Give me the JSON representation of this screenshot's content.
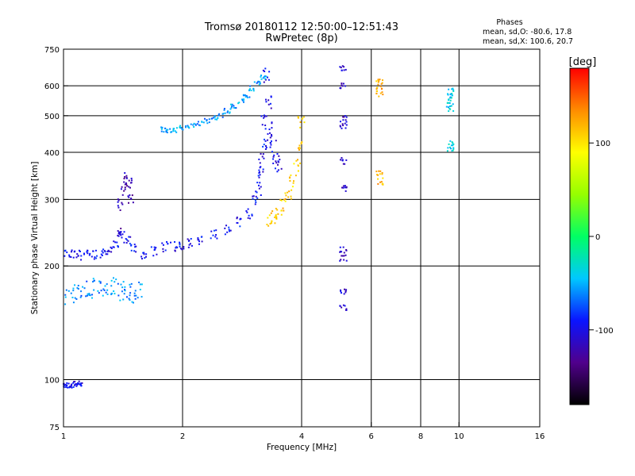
{
  "chart_data": {
    "type": "scatter",
    "title": "Tromsø 20180112 12:50:00–12:51:43",
    "subtitle": "RwPretec (8p)",
    "stats": {
      "title": "Phases",
      "line_o": "mean, sd,O: -80.6, 17.8",
      "line_x": "mean, sd,X: 100.6, 20.7"
    },
    "xlabel": "Frequency [MHz]",
    "ylabel": "Stationary phase Virtual Height [km]",
    "x_scale": "log",
    "y_scale": "log",
    "xlim": [
      1,
      16
    ],
    "ylim": [
      75,
      750
    ],
    "x_ticks": [
      {
        "value": 1,
        "label": "1"
      },
      {
        "value": 2,
        "label": "2"
      },
      {
        "value": 4,
        "label": "4"
      },
      {
        "value": 6,
        "label": "6"
      },
      {
        "value": 8,
        "label": "8"
      },
      {
        "value": 10,
        "label": "10"
      },
      {
        "value": 16,
        "label": "16"
      }
    ],
    "x_grid": [
      2,
      4,
      6,
      8,
      10
    ],
    "y_ticks": [
      {
        "value": 75,
        "label": "75"
      },
      {
        "value": 100,
        "label": "100"
      },
      {
        "value": 200,
        "label": "200"
      },
      {
        "value": 300,
        "label": "300"
      },
      {
        "value": 400,
        "label": "400"
      },
      {
        "value": 500,
        "label": "500"
      },
      {
        "value": 600,
        "label": "600"
      },
      {
        "value": 750,
        "label": "750"
      }
    ],
    "y_grid": [
      100,
      200,
      300,
      400,
      500,
      600
    ],
    "grid": true,
    "colorbar": {
      "label": "[deg]",
      "range": [
        -180,
        180
      ],
      "ticks": [
        {
          "value": 100,
          "label": "100"
        },
        {
          "value": 0,
          "label": "0"
        },
        {
          "value": -100,
          "label": "-100"
        }
      ],
      "colors": [
        "#000000",
        "#50008c",
        "#0a14ff",
        "#00c8ff",
        "#00ff64",
        "#96ff00",
        "#ffff00",
        "#ff8c00",
        "#ff0000"
      ]
    },
    "series": [
      {
        "phase": -95,
        "x": [
          1.0,
          1.05,
          1.1,
          1.15,
          1.2,
          1.25,
          1.3,
          1.35,
          1.4,
          1.45,
          1.5,
          1.6,
          1.7,
          1.8,
          1.9,
          2.0,
          2.1,
          2.2,
          2.4,
          2.6,
          2.8,
          2.95,
          3.05,
          3.15,
          3.22
        ],
        "y": [
          215,
          214,
          214,
          214,
          215,
          217,
          220,
          228,
          240,
          232,
          222,
          215,
          218,
          225,
          225,
          228,
          230,
          235,
          242,
          250,
          262,
          275,
          300,
          350,
          420
        ],
        "spread": 0.03
      },
      {
        "phase": -100,
        "x": [
          3.1,
          3.15,
          3.2,
          3.25,
          3.3,
          3.35,
          3.4,
          3.45,
          3.5
        ],
        "y": [
          320,
          380,
          480,
          640,
          550,
          460,
          420,
          390,
          370
        ],
        "spread": 0.05
      },
      {
        "phase": 110,
        "x": [
          3.3,
          3.4,
          3.5,
          3.6,
          3.7,
          3.8,
          3.9,
          3.95,
          4.0
        ],
        "y": [
          265,
          270,
          278,
          290,
          310,
          335,
          370,
          420,
          480
        ],
        "spread": 0.04
      },
      {
        "phase": -55,
        "x": [
          1.8,
          1.85,
          1.9,
          2.0,
          2.1,
          2.2,
          2.3,
          2.4,
          2.5,
          2.6,
          2.7,
          2.8,
          2.9,
          3.0,
          3.1,
          3.2
        ],
        "y": [
          460,
          455,
          458,
          465,
          470,
          478,
          485,
          492,
          500,
          515,
          530,
          545,
          565,
          590,
          610,
          630
        ],
        "spread": 0.015
      },
      {
        "phase": -60,
        "x": [
          1.0,
          1.05,
          1.1,
          1.15,
          1.2,
          1.25,
          1.3,
          1.35,
          1.4,
          1.45,
          1.5,
          1.55
        ],
        "y": [
          168,
          168,
          170,
          172,
          175,
          175,
          178,
          176,
          172,
          170,
          170,
          172
        ],
        "spread": 0.06
      },
      {
        "phase": -120,
        "x": [
          1.38,
          1.4,
          1.42,
          1.44,
          1.46,
          1.48
        ],
        "y": [
          250,
          290,
          320,
          345,
          330,
          300
        ],
        "spread": 0.04
      },
      {
        "phase": -100,
        "x": [
          1.0,
          1.02,
          1.04,
          1.06,
          1.08,
          1.1
        ],
        "y": [
          96,
          97,
          96,
          97,
          98,
          97
        ],
        "spread": 0.01
      },
      {
        "phase": -110,
        "x": [
          5.1,
          5.1,
          5.1,
          5.1,
          5.1,
          5.1,
          5.1,
          5.1,
          5.1,
          5.1
        ],
        "y": [
          670,
          600,
          490,
          470,
          380,
          320,
          220,
          210,
          170,
          155
        ],
        "spread": 0.02
      },
      {
        "phase": 120,
        "x": [
          6.3,
          6.3,
          6.3,
          6.3,
          6.3
        ],
        "y": [
          620,
          600,
          570,
          350,
          335
        ],
        "spread": 0.02
      },
      {
        "phase": -40,
        "x": [
          9.5,
          9.5,
          9.5,
          9.5,
          9.5,
          9.5
        ],
        "y": [
          580,
          560,
          540,
          520,
          420,
          410
        ],
        "spread": 0.02
      }
    ]
  }
}
